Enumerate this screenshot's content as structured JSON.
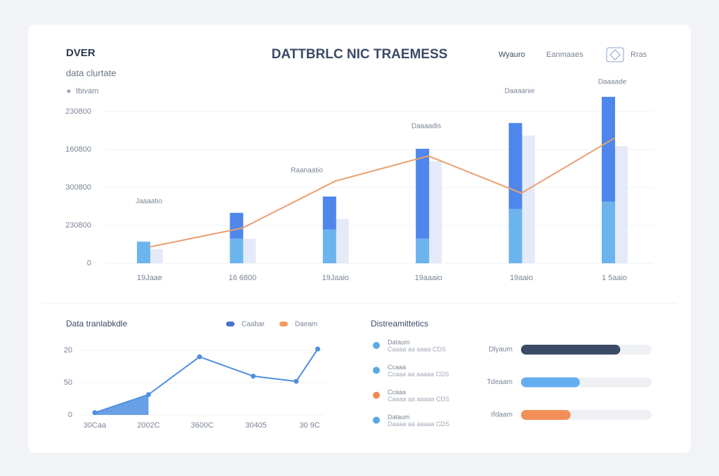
{
  "header": {
    "logo": "DVER",
    "title": "DATTBRLC NIC TRAEMESS",
    "nav": [
      "Wyauro",
      "Eanmaaes",
      "Rras"
    ]
  },
  "chart_data": [
    {
      "type": "bar",
      "subtitle": "data clurtate",
      "legend": "Ibivam",
      "categories": [
        "19Jaae",
        "16 6800",
        "19Jaaio",
        "19aaaio",
        "19aaio",
        "1 5aaio"
      ],
      "annotations": [
        "Jaaaatio",
        "Raanaatio",
        "Daaaadis",
        "Daaaanie",
        "Daaaade"
      ],
      "ylim": [
        0,
        4.6
      ],
      "yticks": [
        {
          "value": 0,
          "label": "0"
        },
        {
          "value": 1,
          "label": "230800"
        },
        {
          "value": 2,
          "label": "300800"
        },
        {
          "value": 3,
          "label": "160800"
        },
        {
          "value": 4,
          "label": "230800"
        }
      ],
      "grid": true,
      "series": [
        {
          "color": "#6cb4ee",
          "values": [
            0.57,
            0.65,
            0.89,
            0.65,
            1.43,
            1.63
          ]
        },
        {
          "color": "#4f86ec",
          "values": [
            0,
            0.68,
            0.87,
            2.37,
            2.27,
            2.76
          ]
        },
        {
          "color": "#e4eaf7",
          "values": [
            0.37,
            0.65,
            1.17,
            2.69,
            3.37,
            3.09
          ]
        },
        {
          "type": "line",
          "color": "#e9a070",
          "values": [
            0.43,
            0.93,
            2.17,
            2.83,
            1.85,
            3.3
          ]
        }
      ]
    },
    {
      "type": "line",
      "title": "Data tranlabkdle",
      "legend": [
        {
          "name": "Caabar",
          "color": "#4a6fd1"
        },
        {
          "name": "Daeam",
          "color": "#ef9a5e"
        }
      ],
      "x": [
        0,
        1,
        1.95,
        2.95,
        3.75,
        4.15
      ],
      "xlim": [
        0,
        4.2
      ],
      "xticks": [
        {
          "value": 0,
          "label": "30Caa"
        },
        {
          "value": 1,
          "label": "2002C"
        },
        {
          "value": 2,
          "label": "3600C"
        },
        {
          "value": 3,
          "label": "30405"
        },
        {
          "value": 4,
          "label": "30 9C"
        }
      ],
      "ylim": [
        0,
        2.2
      ],
      "yticks": [
        0,
        {
          "value": 1,
          "label": "50"
        },
        {
          "value": 2,
          "label": "20"
        }
      ],
      "grid": true,
      "color": "#4f8ee0",
      "values": [
        0.07,
        0.63,
        1.8,
        1.2,
        1.04,
        2.04
      ]
    },
    {
      "type": "hbar",
      "categories": [
        "Dlyaum",
        "Tdeaam",
        "Ifdaam"
      ],
      "values": [
        76,
        45,
        38
      ],
      "colors": [
        "#3b4a66",
        "#62aef0",
        "#f28f58"
      ],
      "xlim": [
        0,
        100
      ]
    }
  ],
  "stats": {
    "title": "Distreamittetics",
    "items": [
      {
        "label": "Dataum",
        "detail": "Caaaa aa aaaa CDS",
        "color": "#5aa9e6"
      },
      {
        "label": "Ccaaa",
        "detail": "Ccaaa aa aaaaa CDS",
        "color": "#5aa9e6"
      },
      {
        "label": "Ccaaa",
        "detail": "Caaaa aa aaaaa CDS",
        "color": "#ef8a57"
      },
      {
        "label": "Dataum",
        "detail": "Daaaa aa aaaaa CDS",
        "color": "#5aa9e6"
      }
    ]
  }
}
